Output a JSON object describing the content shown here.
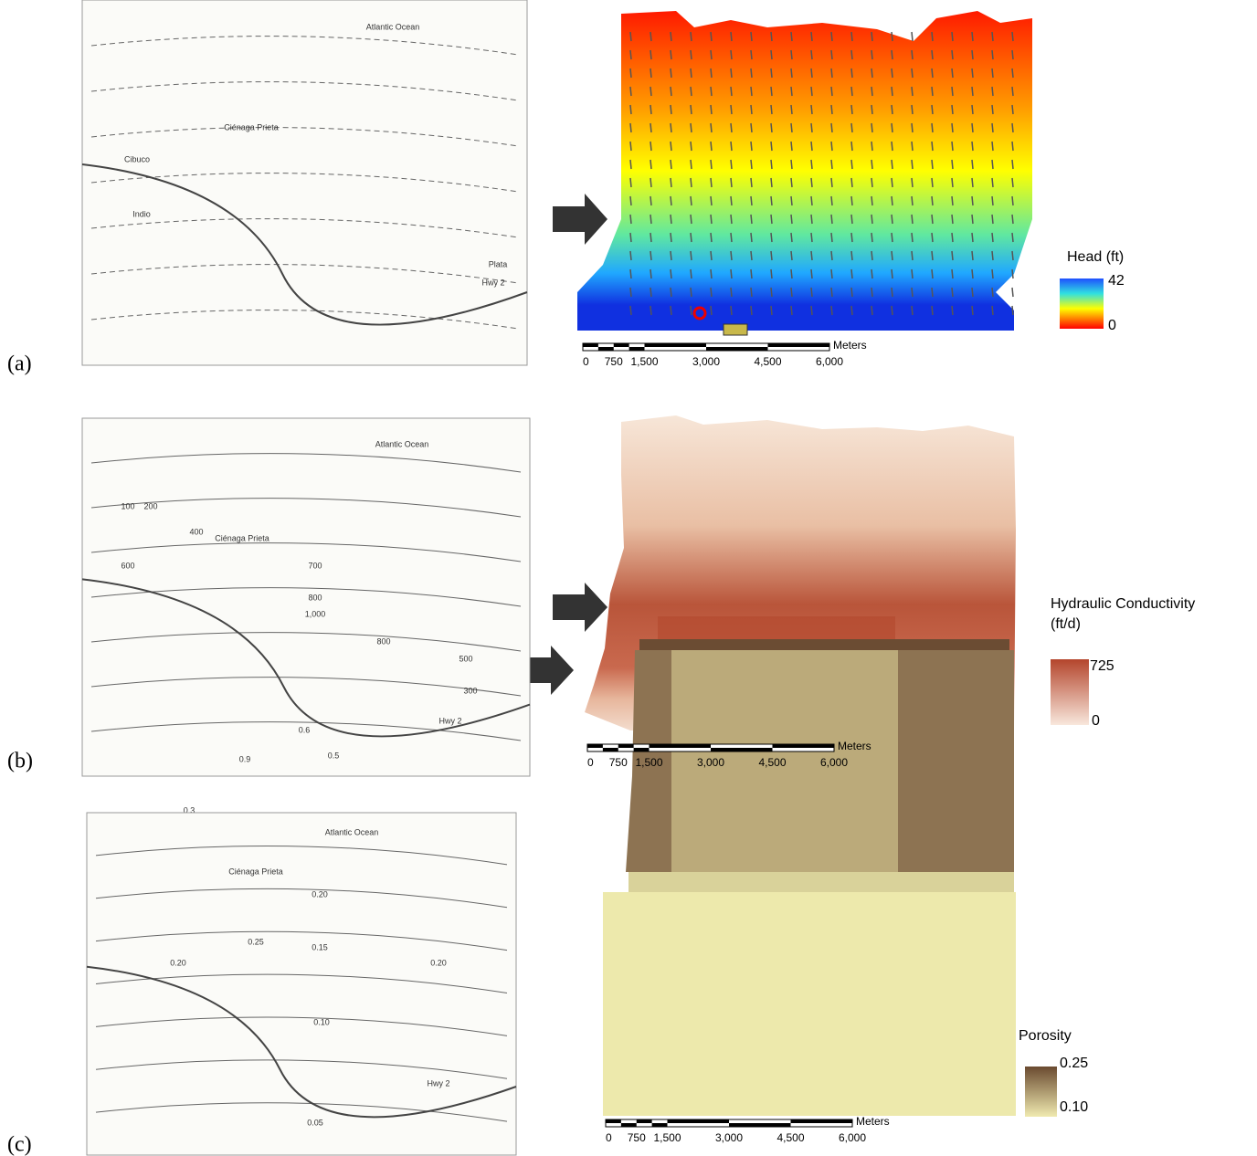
{
  "panels": [
    {
      "label": "(a)",
      "left_map": {
        "labels": [
          "Atlantic Ocean",
          "Cibuco",
          "Ciénaga Prieta",
          "Indio",
          "Plata",
          "Hwy 2"
        ]
      },
      "right_map": {
        "legend_title": [
          "Head (ft)"
        ],
        "legend_max": "42",
        "legend_min": "0",
        "scale_unit": "Meters",
        "scale_ticks": [
          "0",
          "750",
          "1,500",
          "3,000",
          "4,500",
          "6,000"
        ]
      }
    },
    {
      "label": "(b)",
      "left_map": {
        "labels": [
          "Atlantic Ocean",
          "Ciénaga Prieta",
          "100",
          "200",
          "400",
          "600",
          "700",
          "800",
          "1,000",
          "800",
          "500",
          "300",
          "0.6",
          "0.5",
          "0.9",
          "0.3",
          "Hwy 2"
        ]
      },
      "right_map": {
        "legend_title": [
          "Hydraulic Conductivity",
          "(ft/d)"
        ],
        "legend_max": "725",
        "legend_min": "0",
        "scale_unit": "Meters",
        "scale_ticks": [
          "0",
          "750",
          "1,500",
          "3,000",
          "4,500",
          "6,000"
        ]
      }
    },
    {
      "label": "(c)",
      "left_map": {
        "labels": [
          "Atlantic Ocean",
          "Ciénaga Prieta",
          "0.25",
          "0.20",
          "0.15",
          "0.20",
          "0.20",
          "0.10",
          "0.05",
          "Hwy 2"
        ]
      },
      "right_map": {
        "legend_title": [
          "Porosity"
        ],
        "legend_max": "0.25",
        "legend_min": "0.10",
        "scale_unit": "Meters",
        "scale_ticks": [
          "0",
          "750",
          "1,500",
          "3,000",
          "4,500",
          "6,000"
        ]
      }
    }
  ]
}
